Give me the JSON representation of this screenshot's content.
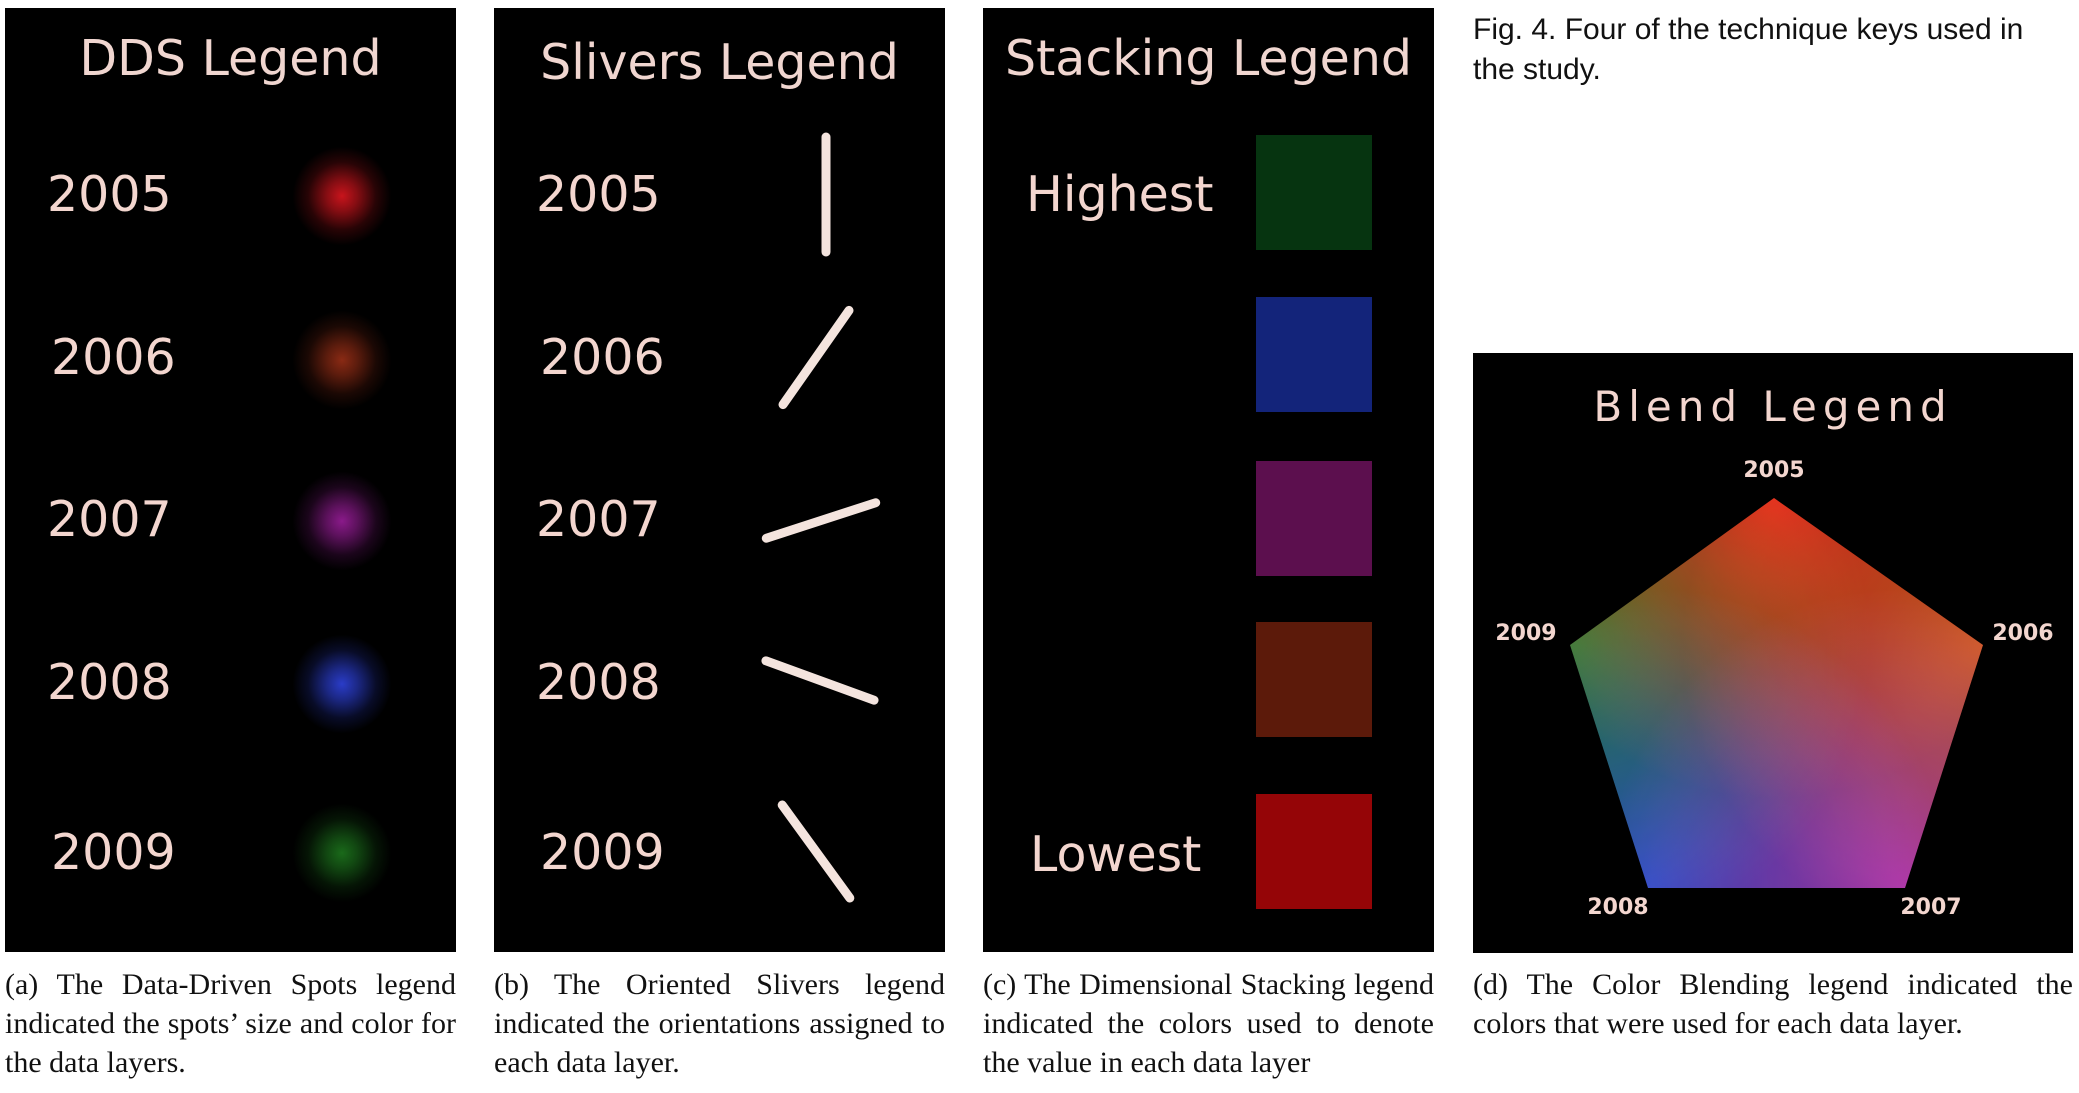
{
  "figure_caption": "Fig. 4.  Four of the technique keys used in the study.",
  "panels": {
    "dds": {
      "title": "DDS Legend",
      "years": [
        "2005",
        "2006",
        "2007",
        "2008",
        "2009"
      ],
      "spot_colors": [
        "#c8141c",
        "#8a2a14",
        "#8a1a8a",
        "#2a3cc8",
        "#1a6a1a"
      ],
      "caption": "(a)  The Data-Driven Spots legend indicated the spots’ size and color for the data layers."
    },
    "slivers": {
      "title": "Slivers Legend",
      "years": [
        "2005",
        "2006",
        "2007",
        "2008",
        "2009"
      ],
      "orientation_deg": [
        90,
        55,
        18,
        -20,
        -54
      ],
      "caption": "(b)  The Oriented Slivers legend indicated the orientations assigned to each data layer."
    },
    "stacking": {
      "title": "Stacking Legend",
      "highest_label": "Highest",
      "lowest_label": "Lowest",
      "swatch_colors": [
        "#063410",
        "#13247a",
        "#5c0f4e",
        "#5c1a0a",
        "#950507"
      ],
      "caption": "(c)  The Dimensional Stacking legend indicated the colors used to denote the value in each data layer"
    },
    "blend": {
      "title": "Blend  Legend",
      "vertex_labels": {
        "top": "2005",
        "right": "2006",
        "bottom_right": "2007",
        "bottom_left": "2008",
        "left": "2009"
      },
      "vertex_colors": {
        "top": "#e01010",
        "right": "#c05010",
        "bottom_right": "#a0209a",
        "bottom_left": "#1a38c0",
        "left": "#1a7018"
      },
      "caption": "(d)  The Color Blending legend indicated the colors that were used for each data layer."
    }
  }
}
